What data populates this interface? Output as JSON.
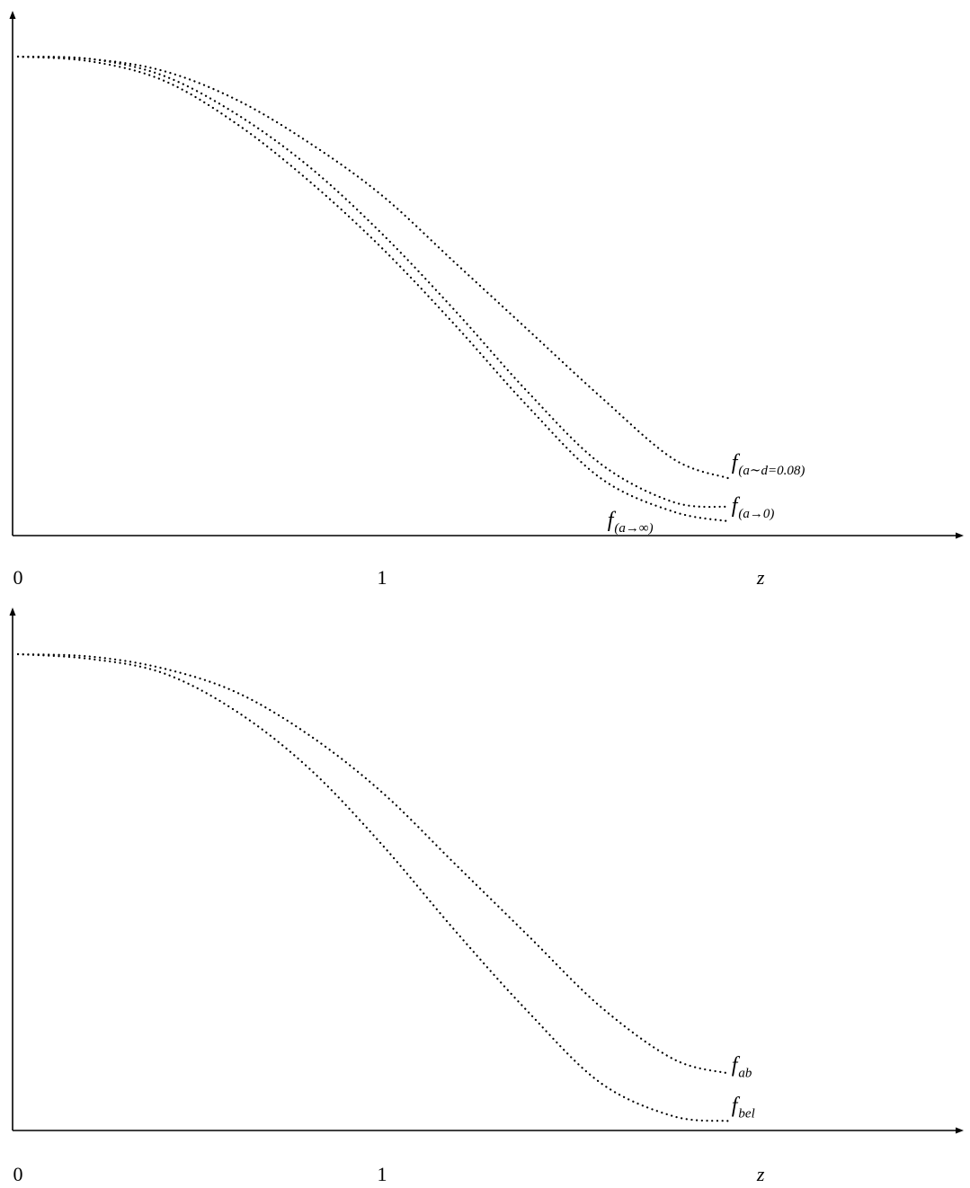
{
  "chart_data": [
    {
      "type": "line",
      "title": "",
      "xlabel": "z",
      "ylabel": "",
      "xlim": [
        0,
        2.6
      ],
      "ylim": [
        0,
        1.0
      ],
      "x_tick_labels": [
        "0",
        "1"
      ],
      "grid": false,
      "legend": "none",
      "series": [
        {
          "label_main": "f",
          "label_sub": "(a∼d=0.08)",
          "x": [
            0,
            0.2,
            0.4,
            0.6,
            0.8,
            1.0,
            1.2,
            1.4,
            1.6,
            1.8,
            1.95
          ],
          "y": [
            1.0,
            0.995,
            0.97,
            0.91,
            0.82,
            0.71,
            0.57,
            0.43,
            0.29,
            0.16,
            0.12
          ]
        },
        {
          "label_main": "f",
          "label_sub": "(a→0)",
          "x": [
            0,
            0.2,
            0.4,
            0.6,
            0.8,
            1.0,
            1.2,
            1.4,
            1.6,
            1.8,
            1.95
          ],
          "y": [
            1.0,
            0.995,
            0.96,
            0.88,
            0.77,
            0.63,
            0.47,
            0.3,
            0.15,
            0.07,
            0.06
          ]
        },
        {
          "label_main": "f",
          "label_sub": "(a→∞)",
          "x": [
            0,
            0.2,
            0.4,
            0.6,
            0.8,
            1.0,
            1.2,
            1.4,
            1.6,
            1.8,
            1.95
          ],
          "y": [
            1.0,
            0.99,
            0.95,
            0.86,
            0.74,
            0.6,
            0.44,
            0.27,
            0.12,
            0.05,
            0.03
          ]
        }
      ]
    },
    {
      "type": "line",
      "title": "",
      "xlabel": "z",
      "ylabel": "",
      "xlim": [
        0,
        2.6
      ],
      "ylim": [
        0,
        1.0
      ],
      "x_tick_labels": [
        "0",
        "1"
      ],
      "grid": false,
      "legend": "none",
      "series": [
        {
          "label_main": "f",
          "label_sub": "ab",
          "x": [
            0,
            0.2,
            0.4,
            0.6,
            0.8,
            1.0,
            1.2,
            1.4,
            1.6,
            1.8,
            1.95
          ],
          "y": [
            1.0,
            0.995,
            0.97,
            0.92,
            0.83,
            0.71,
            0.56,
            0.41,
            0.26,
            0.15,
            0.12
          ]
        },
        {
          "label_main": "f",
          "label_sub": "bel",
          "x": [
            0,
            0.2,
            0.4,
            0.6,
            0.8,
            1.0,
            1.2,
            1.4,
            1.6,
            1.8,
            1.95
          ],
          "y": [
            1.0,
            0.99,
            0.96,
            0.88,
            0.76,
            0.6,
            0.42,
            0.25,
            0.1,
            0.03,
            0.02
          ]
        }
      ]
    }
  ]
}
